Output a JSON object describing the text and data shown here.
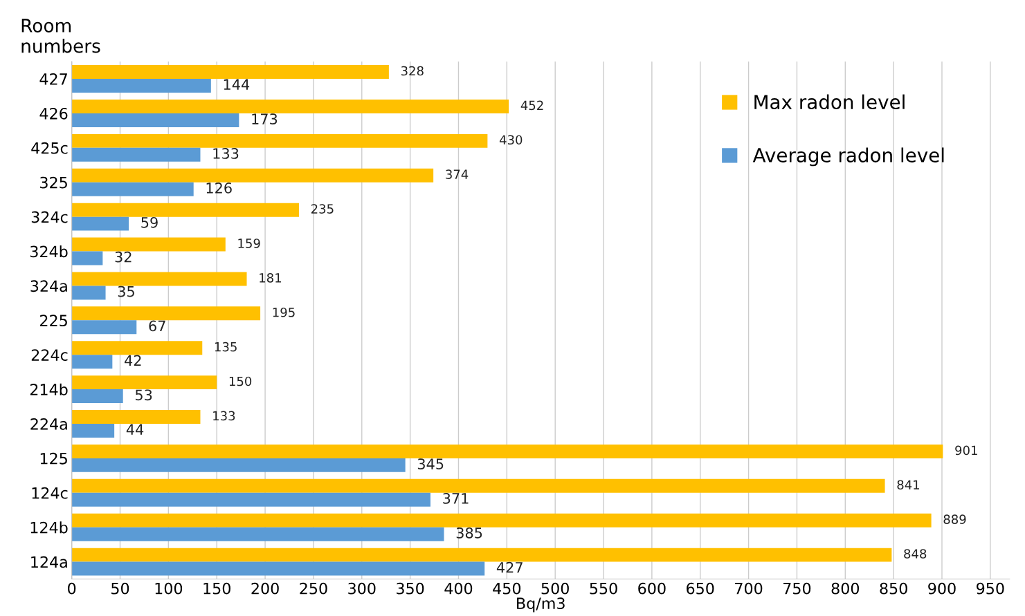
{
  "chart_data": {
    "type": "bar",
    "orientation": "horizontal",
    "ylabel": "Room\nnumbers",
    "xlabel": "Bq/m3",
    "categories": [
      "427",
      "426",
      "425c",
      "325",
      "324c",
      "324b",
      "324a",
      "225",
      "224c",
      "214b",
      "224a",
      "125",
      "124c",
      "124b",
      "124a"
    ],
    "series": [
      {
        "name": "Max radon level",
        "color": "#ffc000",
        "values": [
          328,
          452,
          430,
          374,
          235,
          159,
          181,
          195,
          135,
          150,
          133,
          901,
          841,
          889,
          848
        ]
      },
      {
        "name": "Average radon level",
        "color": "#5b9bd5",
        "values": [
          144,
          173,
          133,
          126,
          59,
          32,
          35,
          67,
          42,
          53,
          44,
          345,
          371,
          385,
          427
        ]
      }
    ],
    "xlim": [
      0,
      970
    ],
    "xticks": [
      0,
      50,
      100,
      150,
      200,
      250,
      300,
      350,
      400,
      450,
      500,
      550,
      600,
      650,
      700,
      750,
      800,
      850,
      900,
      950
    ],
    "grid": "x",
    "legend": "top right",
    "data_labels": true
  }
}
